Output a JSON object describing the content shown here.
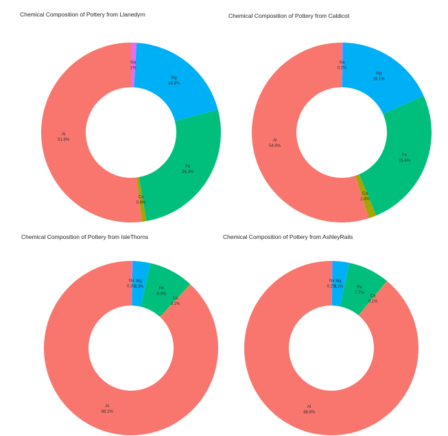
{
  "colors": {
    "Al": "#F8766D",
    "Ca": "#A3A500",
    "Fe": "#00BF7D",
    "Mg": "#00B0F6",
    "Na": "#E76BF3"
  },
  "chart_data": [
    {
      "type": "pie",
      "title": "Chemical Composition of Pottery from Llanedyrn",
      "categories": [
        "Na",
        "Mg",
        "Fe",
        "Ca",
        "Al"
      ],
      "values": [
        1,
        19.9,
        26.3,
        0.8,
        51.9
      ],
      "labels": [
        "1%",
        "19.9%",
        "26.3%",
        "0.8%",
        "51.9%"
      ]
    },
    {
      "type": "pie",
      "title": "Chemical Composition of Pottery from Caldicot",
      "categories": [
        "Na",
        "Mg",
        "Fe",
        "Ca",
        "Al"
      ],
      "values": [
        0.2,
        18.1,
        25.4,
        1.4,
        54.9
      ],
      "labels": [
        "0.2%",
        "18.1%",
        "25.4%",
        "1.4%",
        "54.9%"
      ]
    },
    {
      "type": "pie",
      "title": "Chemical Composition of Pottery from IsleThorns",
      "categories": [
        "Na",
        "Mg",
        "Fe",
        "Ca",
        "Al"
      ],
      "values": [
        0.3,
        3.3,
        8.3,
        0.1,
        88.1
      ],
      "labels": [
        "0.3%",
        "3.3%",
        "8.3%",
        "0.1%",
        "88.1%"
      ]
    },
    {
      "type": "pie",
      "title": "Chemical Composition of Pottery from AshleyRails",
      "categories": [
        "Na",
        "Mg",
        "Fe",
        "Ca",
        "Al"
      ],
      "values": [
        0.2,
        3.1,
        7.7,
        0.1,
        88.9
      ],
      "labels": [
        "0.2%",
        "3.1%",
        "7.7%",
        "0.1%",
        "88.9%"
      ]
    }
  ]
}
